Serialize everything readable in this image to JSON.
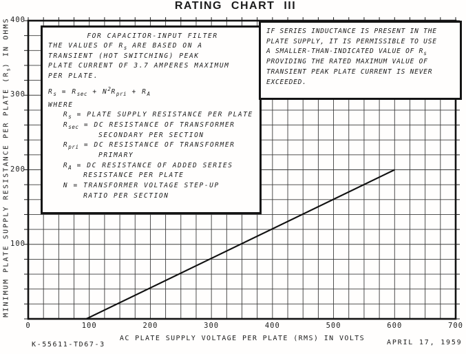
{
  "title": "RATING CHART III",
  "axes": {
    "x_label": "AC PLATE SUPPLY VOLTAGE PER PLATE (RMS) IN VOLTS",
    "y_label_segments": [
      {
        "t": "MINIMUM PLATE SUPPLY RESISTANCE PER PLATE (R"
      },
      {
        "t": "s",
        "sub": true
      },
      {
        "t": ") IN OHMS"
      }
    ],
    "x_tick_labels": [
      "0",
      "100",
      "200",
      "300",
      "400",
      "500",
      "600",
      "700"
    ],
    "y_tick_labels": [
      "400",
      "300",
      "200",
      "100"
    ]
  },
  "notes_left": {
    "heading": "FOR CAPACITOR-INPUT FILTER",
    "lines": [
      {
        "ind": 0,
        "seg": [
          {
            "t": "THE VALUES OF R"
          },
          {
            "t": "s",
            "sub": true
          },
          {
            "t": " ARE BASED ON A"
          }
        ]
      },
      {
        "ind": 0,
        "seg": [
          {
            "t": "TRANSIENT (HOT SWITCHING) PEAK"
          }
        ]
      },
      {
        "ind": 0,
        "seg": [
          {
            "t": "PLATE CURRENT OF 3.7 AMPERES MAXIMUM"
          }
        ]
      },
      {
        "ind": 0,
        "seg": [
          {
            "t": "PER PLATE."
          }
        ]
      },
      {
        "ind": 0,
        "gap": 8,
        "seg": [
          {
            "t": "R"
          },
          {
            "t": "s",
            "sub": true
          },
          {
            "t": " = R"
          },
          {
            "t": "sec",
            "sub": true
          },
          {
            "t": " + N"
          },
          {
            "t": "2",
            "sup": true
          },
          {
            "t": "R"
          },
          {
            "t": "pri",
            "sub": true
          },
          {
            "t": " + R"
          },
          {
            "t": "A",
            "sub": true
          }
        ]
      },
      {
        "ind": 0,
        "gap": 4,
        "seg": [
          {
            "t": "WHERE"
          }
        ]
      },
      {
        "ind": 3,
        "seg": [
          {
            "t": "R"
          },
          {
            "t": "s",
            "sub": true
          },
          {
            "t": " = PLATE SUPPLY RESISTANCE PER PLATE"
          }
        ]
      },
      {
        "ind": 3,
        "seg": [
          {
            "t": "R"
          },
          {
            "t": "sec",
            "sub": true
          },
          {
            "t": " = DC RESISTANCE OF TRANSFORMER"
          }
        ]
      },
      {
        "ind": 10,
        "seg": [
          {
            "t": "SECONDARY PER SECTION"
          }
        ]
      },
      {
        "ind": 3,
        "seg": [
          {
            "t": "R"
          },
          {
            "t": "pri",
            "sub": true
          },
          {
            "t": " = DC RESISTANCE OF TRANSFORMER"
          }
        ]
      },
      {
        "ind": 10,
        "seg": [
          {
            "t": "PRIMARY"
          }
        ]
      },
      {
        "ind": 3,
        "seg": [
          {
            "t": "R"
          },
          {
            "t": "A",
            "sub": true
          },
          {
            "t": " = DC RESISTANCE OF ADDED SERIES"
          }
        ]
      },
      {
        "ind": 7,
        "seg": [
          {
            "t": "RESISTANCE PER PLATE"
          }
        ]
      },
      {
        "ind": 3,
        "seg": [
          {
            "t": "N = TRANSFORMER VOLTAGE STEP-UP"
          }
        ]
      },
      {
        "ind": 7,
        "seg": [
          {
            "t": "RATIO PER SECTION"
          }
        ]
      }
    ]
  },
  "notes_right": {
    "lines": [
      {
        "ind": 0,
        "seg": [
          {
            "t": "IF SERIES INDUCTANCE IS PRESENT IN THE"
          }
        ]
      },
      {
        "ind": 0,
        "seg": [
          {
            "t": "PLATE SUPPLY, IT IS PERMISSIBLE TO USE"
          }
        ]
      },
      {
        "ind": 0,
        "seg": [
          {
            "t": "A SMALLER-THAN-INDICATED VALUE OF R"
          },
          {
            "t": "s",
            "sub": true
          }
        ]
      },
      {
        "ind": 0,
        "seg": [
          {
            "t": "PROVIDING THE RATED MAXIMUM VALUE OF"
          }
        ]
      },
      {
        "ind": 0,
        "seg": [
          {
            "t": "TRANSIENT PEAK PLATE CURRENT IS NEVER"
          }
        ]
      },
      {
        "ind": 0,
        "seg": [
          {
            "t": "EXCEEDED."
          }
        ]
      }
    ]
  },
  "footer": {
    "drawing_number": "K-55611-TD67-3",
    "date": "APRIL 17, 1959"
  },
  "chart_data": {
    "type": "line",
    "title": "RATING CHART III",
    "xlabel": "AC PLATE SUPPLY VOLTAGE PER PLATE (RMS) IN VOLTS",
    "ylabel": "MINIMUM PLATE SUPPLY RESISTANCE PER PLATE (Rs) IN OHMS",
    "xlim": [
      0,
      700
    ],
    "ylim": [
      0,
      400
    ],
    "x_major_step": 100,
    "y_major_step": 100,
    "x_minor_step": 25,
    "y_minor_step": 20,
    "grid": true,
    "legend": "none",
    "series": [
      {
        "name": "minimum plate supply resistance per plate",
        "points": [
          [
            95,
            0
          ],
          [
            600,
            200
          ]
        ]
      }
    ],
    "ink_color": "#1b1b1b",
    "background_color": "#fffefd"
  }
}
